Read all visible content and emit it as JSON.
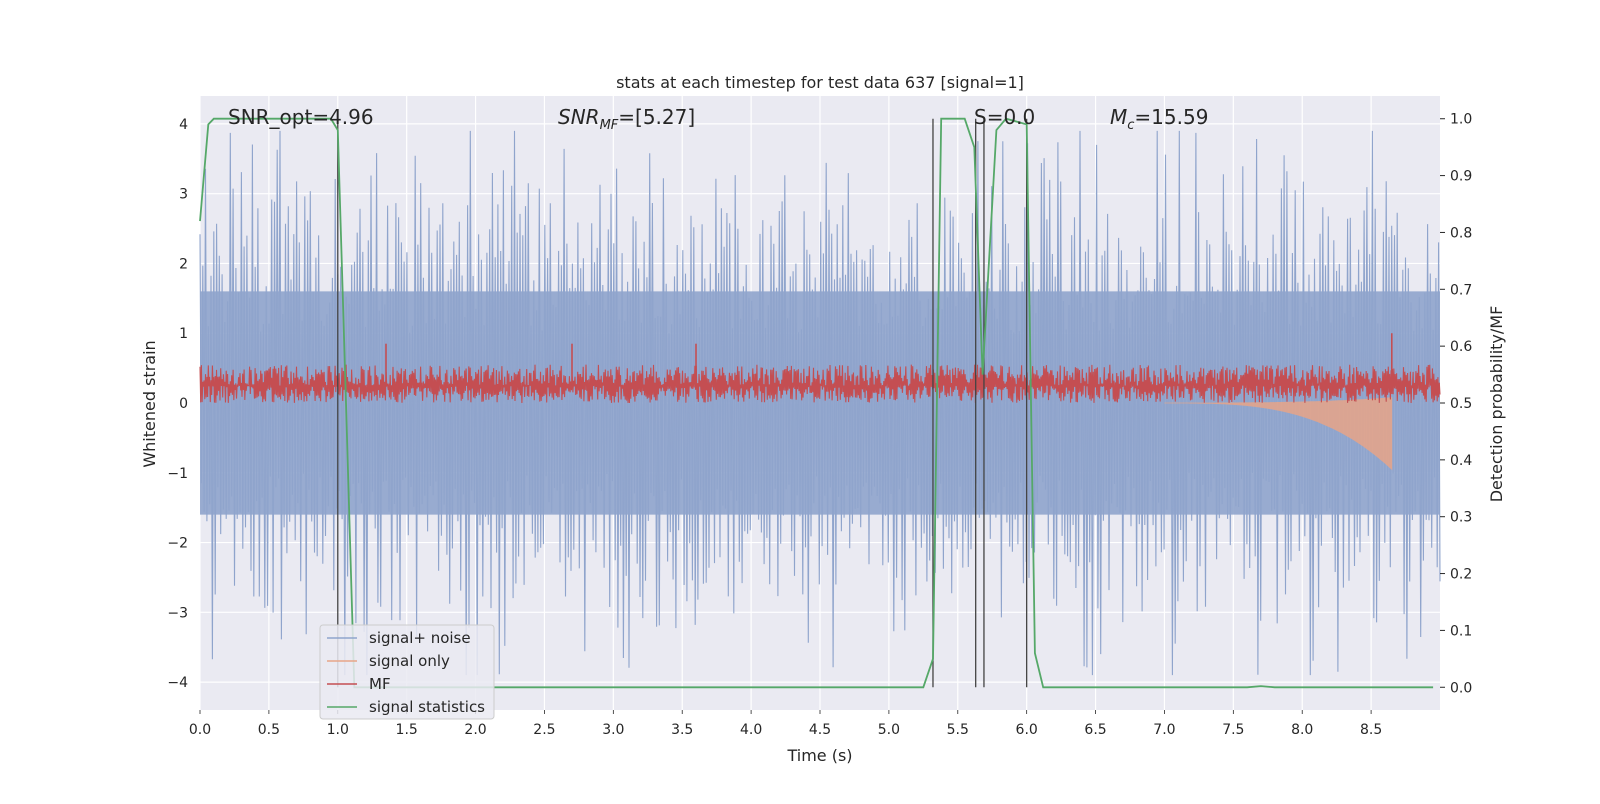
{
  "chart_data": {
    "type": "line",
    "title": "stats at each timestep for test data 637 [signal=1]",
    "xlabel": "Time (s)",
    "ylabel": "Whitened strain",
    "ylabel_right": "Detection probability/MF",
    "xlim": [
      0.0,
      9.0
    ],
    "ylim": [
      -4.4,
      4.4
    ],
    "ylim_right": [
      -0.04,
      1.04
    ],
    "x_ticks": [
      0.0,
      0.5,
      1.0,
      1.5,
      2.0,
      2.5,
      3.0,
      3.5,
      4.0,
      4.5,
      5.0,
      5.5,
      6.0,
      6.5,
      7.0,
      7.5,
      8.0,
      8.5
    ],
    "x_tick_labels": [
      "0.0",
      "0.5",
      "1.0",
      "1.5",
      "2.0",
      "2.5",
      "3.0",
      "3.5",
      "4.0",
      "4.5",
      "5.0",
      "5.5",
      "6.0",
      "6.5",
      "7.0",
      "7.5",
      "8.0",
      "8.5"
    ],
    "y_ticks": [
      -4,
      -3,
      -2,
      -1,
      0,
      1,
      2,
      3,
      4
    ],
    "y_tick_labels": [
      "−4",
      "−3",
      "−2",
      "−1",
      "0",
      "1",
      "2",
      "3",
      "4"
    ],
    "y_ticks_right": [
      0.0,
      0.1,
      0.2,
      0.3,
      0.4,
      0.5,
      0.6,
      0.7,
      0.8,
      0.9,
      1.0
    ],
    "y_tick_labels_right": [
      "0.0",
      "0.1",
      "0.2",
      "0.3",
      "0.4",
      "0.5",
      "0.6",
      "0.7",
      "0.8",
      "0.9",
      "1.0"
    ],
    "grid": true,
    "legend_position": "lower-left",
    "annotations": {
      "snr_opt": "SNR_opt=4.96",
      "snr_mf_main": "SNR",
      "snr_mf_sub": "MF",
      "snr_mf_rest": "=[5.27]",
      "s_label": "S=0.0",
      "mc_main": "M",
      "mc_sub": "c",
      "mc_rest": "=15.59"
    },
    "series": [
      {
        "name": "signal+ noise",
        "color": "#8fa4cc",
        "axis": "left",
        "description_points": {
          "x": [
            0.0,
            1.0,
            2.0,
            3.0,
            4.0,
            5.0,
            6.0,
            7.0,
            8.0,
            9.0
          ],
          "y_max": [
            2.8,
            2.9,
            3.2,
            3.2,
            3.3,
            3.6,
            3.4,
            3.9,
            3.9,
            3.4
          ],
          "y_min": [
            -3.6,
            -3.1,
            -3.3,
            -3.2,
            -3.5,
            -3.6,
            -3.6,
            -3.7,
            -3.7,
            -3.0
          ]
        }
      },
      {
        "name": "signal only",
        "color": "#e8a588",
        "axis": "left",
        "chirp": {
          "start": 7.0,
          "end": 8.65,
          "peak_amplitude": 0.95
        }
      },
      {
        "name": "MF",
        "color": "#c44e52",
        "axis": "left",
        "baseline": 0.25,
        "band_low": 0.0,
        "band_high": 0.55,
        "spikes": [
          {
            "x": 1.35,
            "y": 0.85
          },
          {
            "x": 2.7,
            "y": 0.85
          },
          {
            "x": 3.6,
            "y": 0.85
          },
          {
            "x": 8.65,
            "y": 1.0
          }
        ]
      },
      {
        "name": "signal statistics",
        "color": "#55a868",
        "axis": "right",
        "x": [
          0.0,
          0.06,
          0.1,
          0.95,
          1.0,
          1.06,
          1.12,
          5.25,
          5.32,
          5.38,
          5.55,
          5.62,
          5.68,
          5.78,
          5.85,
          6.0,
          6.06,
          6.12,
          7.6,
          7.7,
          7.8,
          8.95
        ],
        "y": [
          0.82,
          0.99,
          1.0,
          1.0,
          0.98,
          0.5,
          0.0,
          0.0,
          0.05,
          1.0,
          1.0,
          0.95,
          0.55,
          0.98,
          1.0,
          0.99,
          0.06,
          0.0,
          0.0,
          0.002,
          0.0,
          0.0
        ]
      }
    ],
    "vertical_lines": [
      1.0,
      5.32,
      5.63,
      5.69,
      6.0
    ]
  }
}
